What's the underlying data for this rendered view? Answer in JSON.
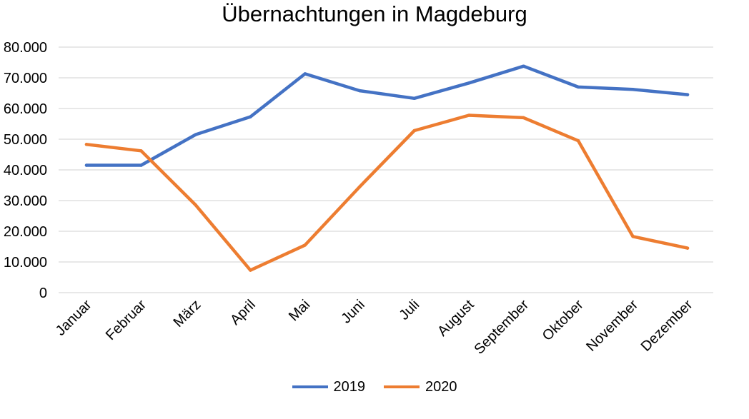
{
  "chart_data": {
    "type": "line",
    "title": "Übernachtungen in Magdeburg",
    "xlabel": "",
    "ylabel": "",
    "categories": [
      "Januar",
      "Februar",
      "März",
      "April",
      "Mai",
      "Juni",
      "Juli",
      "August",
      "September",
      "Oktober",
      "November",
      "Dezember"
    ],
    "ylim": [
      0,
      80000
    ],
    "yticks": [
      0,
      10000,
      20000,
      30000,
      40000,
      50000,
      60000,
      70000,
      80000
    ],
    "ytick_labels": [
      "0",
      "10.000",
      "20.000",
      "30.000",
      "40.000",
      "50.000",
      "60.000",
      "70.000",
      "80.000"
    ],
    "grid": true,
    "legend_position": "bottom",
    "series": [
      {
        "name": "2019",
        "color": "#4472c4",
        "values": [
          41500,
          41500,
          51500,
          57300,
          71300,
          65800,
          63300,
          68300,
          73800,
          67000,
          66200,
          64500
        ]
      },
      {
        "name": "2020",
        "color": "#ed7d31",
        "values": [
          48300,
          46200,
          28500,
          7300,
          15500,
          34500,
          52800,
          57800,
          57000,
          49500,
          18300,
          14500
        ]
      }
    ]
  }
}
